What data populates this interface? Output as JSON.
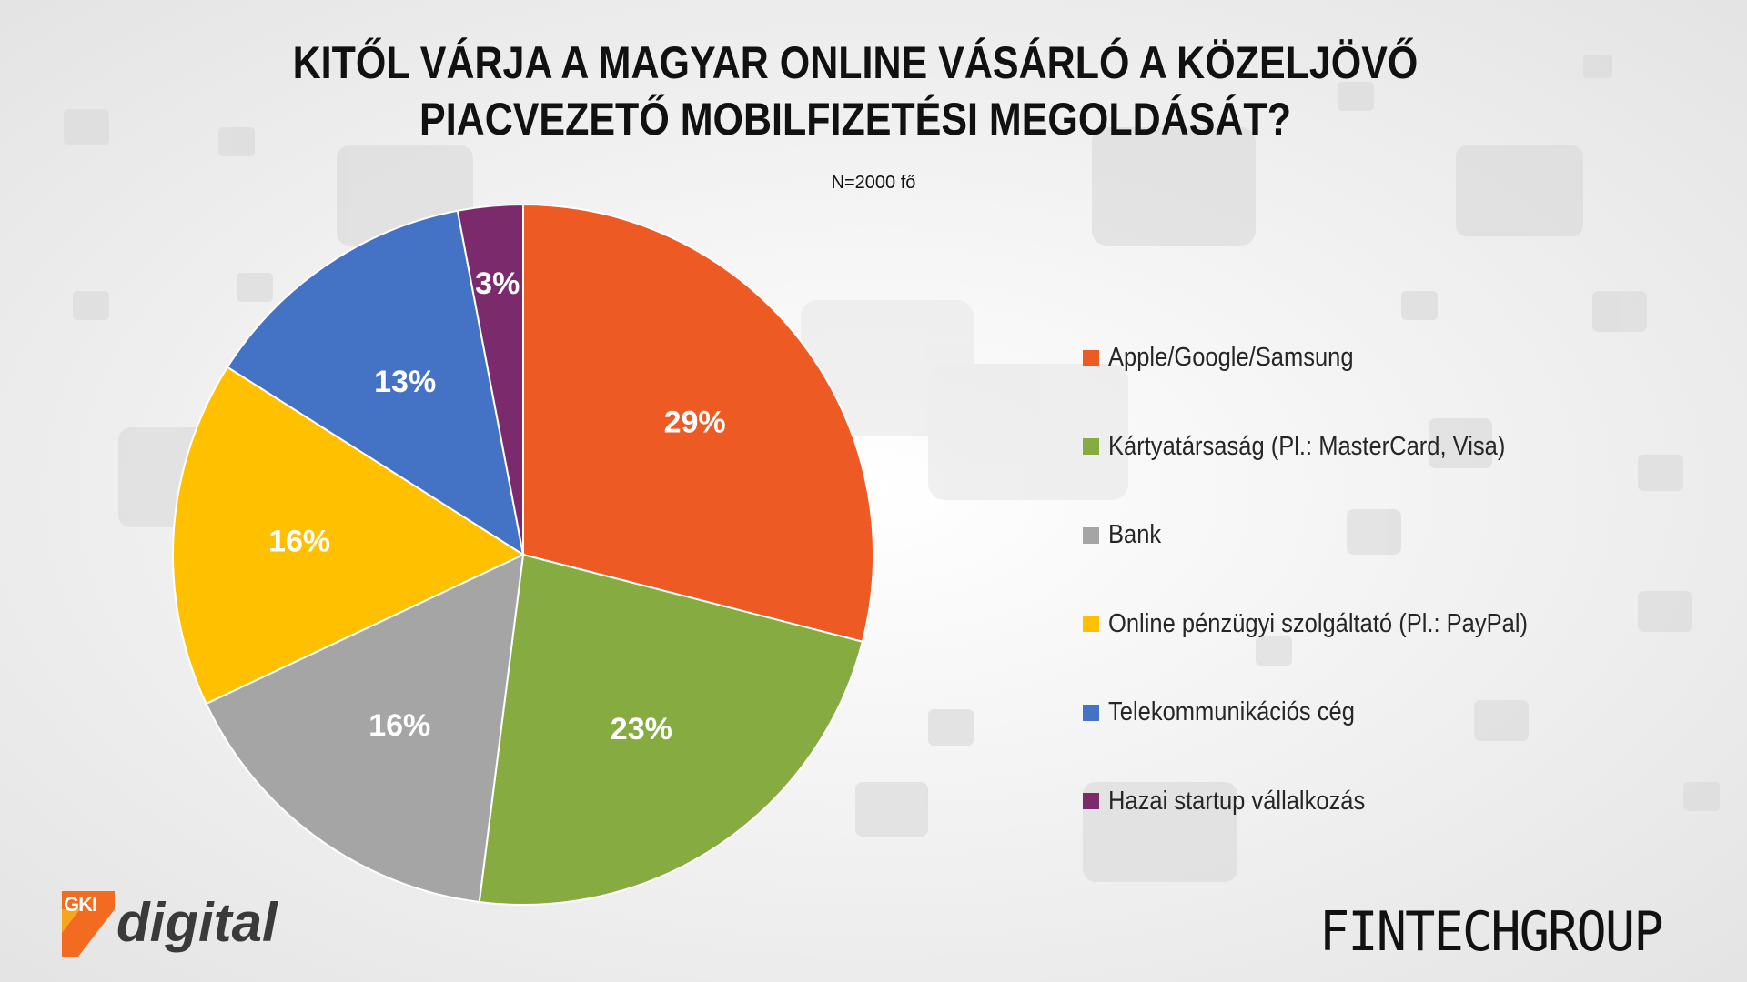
{
  "title_line1": "KITŐL VÁRJA A MAGYAR ONLINE VÁSÁRLÓ A KÖZELJÖVŐ",
  "title_line2": "PIACVEZETŐ MOBILFIZETÉSI MEGOLDÁSÁT?",
  "subtitle": "N=2000 fő",
  "chart_data": {
    "type": "pie",
    "title": "KITŐL VÁRJA A MAGYAR ONLINE VÁSÁRLÓ A KÖZELJÖVŐ PIACVEZETŐ MOBILFIZETÉSI MEGOLDÁSÁT?",
    "subtitle": "N=2000 fő",
    "legend_position": "right",
    "categories": [
      "Apple/Google/Samsung",
      "Kártyatársaság (Pl.: MasterCard, Visa)",
      "Bank",
      "Online pénzügyi szolgáltató (Pl.: PayPal)",
      "Telekommunikációs cég",
      "Hazai startup vállalkozás"
    ],
    "values": [
      29,
      23,
      16,
      16,
      13,
      3
    ],
    "labels": [
      "29%",
      "23%",
      "16%",
      "16%",
      "13%",
      "3%"
    ],
    "colors": [
      "#EE5A24",
      "#86AC41",
      "#A5A5A5",
      "#FFC000",
      "#4472C4",
      "#7B2A6C"
    ]
  },
  "logos": {
    "gki_mark": "GKI",
    "gki_word": "digital",
    "fintech": "FINTECHGROUP"
  }
}
